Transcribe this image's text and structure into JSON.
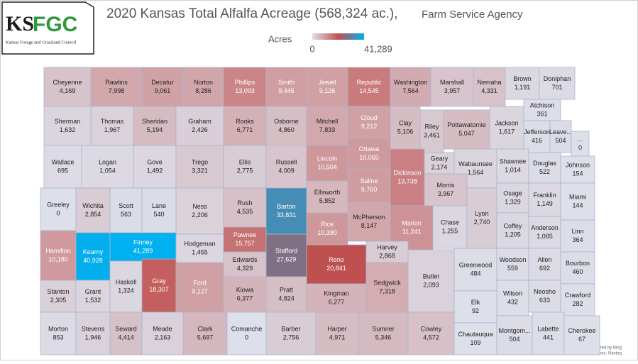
{
  "header": {
    "title": "2020 Kansas Total Alfalfa Acreage (568,324 ac.),",
    "subtitle": "Farm Service Agency",
    "logo": {
      "mark_left": "KS",
      "mark_right": "FGC",
      "caption": "Kansas Forage and Grassland Council"
    }
  },
  "map": {
    "type": "choropleth",
    "legend": {
      "title": "Acres",
      "range": [
        {
          "value": 0,
          "label": "0"
        },
        {
          "value": 41289,
          "label": "41,289"
        }
      ],
      "color_stops": [
        "#dde0ea",
        "#c0504d",
        "#00b0f0"
      ]
    },
    "counties": [
      {
        "name": "Cheyenne",
        "value": 4169,
        "label": "4,169"
      },
      {
        "name": "Rawlins",
        "value": 7998,
        "label": "7,998"
      },
      {
        "name": "Decatur",
        "value": 9061,
        "label": "9,061"
      },
      {
        "name": "Norton",
        "value": 8286,
        "label": "8,286"
      },
      {
        "name": "Phillips",
        "value": 13093,
        "label": "13,093"
      },
      {
        "name": "Smith",
        "value": 9445,
        "label": "9,445"
      },
      {
        "name": "Jewell",
        "value": 9126,
        "label": "9,126"
      },
      {
        "name": "Republic",
        "value": 14545,
        "label": "14,545"
      },
      {
        "name": "Washington",
        "value": 7564,
        "label": "7,564"
      },
      {
        "name": "Marshall",
        "value": 3957,
        "label": "3,957"
      },
      {
        "name": "Nemaha",
        "value": 4331,
        "label": "4,331"
      },
      {
        "name": "Brown",
        "value": 1191,
        "label": "1,191"
      },
      {
        "name": "Doniphan",
        "value": 701
      },
      {
        "name": "Sherman",
        "value": 1632,
        "label": "1,632"
      },
      {
        "name": "Thomas",
        "value": 1967,
        "label": "1,967"
      },
      {
        "name": "Sheridan",
        "value": 5194,
        "label": "5,194"
      },
      {
        "name": "Graham",
        "value": 2426,
        "label": "2,426"
      },
      {
        "name": "Rooks",
        "value": 6771,
        "label": "6,771"
      },
      {
        "name": "Osborne",
        "value": 4860,
        "label": "4,860"
      },
      {
        "name": "Mitchell",
        "value": 7833,
        "label": "7,833"
      },
      {
        "name": "Cloud",
        "value": 9212,
        "label": "9,212"
      },
      {
        "name": "Clay",
        "value": 5106,
        "label": "5,106"
      },
      {
        "name": "Riley",
        "value": 3461,
        "label": "3,461"
      },
      {
        "name": "Pottawatomie",
        "value": 5047,
        "label": "5,047"
      },
      {
        "name": "Jackson",
        "value": 1617,
        "label": "1,617"
      },
      {
        "name": "Atchison",
        "value": 361
      },
      {
        "name": "Jefferson",
        "value": 416
      },
      {
        "name": "Leave...",
        "value": 504
      },
      {
        "name": "...",
        "value": 0
      },
      {
        "name": "Wallace",
        "value": 695
      },
      {
        "name": "Logan",
        "value": 1054,
        "label": "1,054"
      },
      {
        "name": "Gove",
        "value": 1492,
        "label": "1,492"
      },
      {
        "name": "Trego",
        "value": 3321,
        "label": "3,321"
      },
      {
        "name": "Ellis",
        "value": 2775,
        "label": "2,775"
      },
      {
        "name": "Russell",
        "value": 4009,
        "label": "4,009"
      },
      {
        "name": "Lincoln",
        "value": 10504,
        "label": "10,504"
      },
      {
        "name": "Ottawa",
        "value": 10065,
        "label": "10,065"
      },
      {
        "name": "Dickinson",
        "value": 13738,
        "label": "13,738"
      },
      {
        "name": "Geary",
        "value": 2174,
        "label": "2,174"
      },
      {
        "name": "Wabaunsee",
        "value": 1564,
        "label": "1,564"
      },
      {
        "name": "Shawnee",
        "value": 1014,
        "label": "1,014"
      },
      {
        "name": "Douglas",
        "value": 522
      },
      {
        "name": "Johnson",
        "value": 154
      },
      {
        "name": "Saline",
        "value": 9760,
        "label": "9,760"
      },
      {
        "name": "Ellsworth",
        "value": 5852,
        "label": "5,852"
      },
      {
        "name": "Morris",
        "value": 3967,
        "label": "3,967"
      },
      {
        "name": "Osage",
        "value": 1329,
        "label": "1,329"
      },
      {
        "name": "Franklin",
        "value": 1149,
        "label": "1,149"
      },
      {
        "name": "Miami",
        "value": 144
      },
      {
        "name": "Greeley",
        "value": 0
      },
      {
        "name": "Wichita",
        "value": 2854,
        "label": "2,854"
      },
      {
        "name": "Scott",
        "value": 563
      },
      {
        "name": "Lane",
        "value": 540
      },
      {
        "name": "Ness",
        "value": 2206,
        "label": "2,206"
      },
      {
        "name": "Rush",
        "value": 4535,
        "label": "4,535"
      },
      {
        "name": "Barton",
        "value": 33831,
        "label": "33,831"
      },
      {
        "name": "McPherson",
        "value": 8147,
        "label": "8,147"
      },
      {
        "name": "Marion",
        "value": 11241,
        "label": "11,241"
      },
      {
        "name": "Chase",
        "value": 1255,
        "label": "1,255"
      },
      {
        "name": "Lyon",
        "value": 2740,
        "label": "2,740"
      },
      {
        "name": "Rice",
        "value": 10390,
        "label": "10,390"
      },
      {
        "name": "Coffey",
        "value": 1205,
        "label": "1,205"
      },
      {
        "name": "Anderson",
        "value": 1065,
        "label": "1,065"
      },
      {
        "name": "Linn",
        "value": 364
      },
      {
        "name": "Hamilton",
        "value": 10180,
        "label": "10,180"
      },
      {
        "name": "Kearny",
        "value": 40928,
        "label": "40,928"
      },
      {
        "name": "Finney",
        "value": 41289,
        "label": "41,289"
      },
      {
        "name": "Hodgeman",
        "value": 1455,
        "label": "1,455"
      },
      {
        "name": "Pawnee",
        "value": 15757,
        "label": "15,757"
      },
      {
        "name": "Stafford",
        "value": 27629,
        "label": "27,629"
      },
      {
        "name": "Reno",
        "value": 20841,
        "label": "20,841"
      },
      {
        "name": "Harvey",
        "value": 2868,
        "label": "2,868"
      },
      {
        "name": "Edwards",
        "value": 4329,
        "label": "4,329"
      },
      {
        "name": "Greenwood",
        "value": 484
      },
      {
        "name": "Butler",
        "value": 2093,
        "label": "2,093"
      },
      {
        "name": "Woodson",
        "value": 559
      },
      {
        "name": "Allen",
        "value": 692
      },
      {
        "name": "Bourbon",
        "value": 460
      },
      {
        "name": "Stanton",
        "value": 2305,
        "label": "2,305"
      },
      {
        "name": "Grant",
        "value": 1532,
        "label": "1,532"
      },
      {
        "name": "Haskell",
        "value": 1324,
        "label": "1,324"
      },
      {
        "name": "Gray",
        "value": 18307,
        "label": "18,307"
      },
      {
        "name": "Ford",
        "value": 9127,
        "label": "9,127"
      },
      {
        "name": "Kiowa",
        "value": 6377,
        "label": "6,377"
      },
      {
        "name": "Pratt",
        "value": 4824,
        "label": "4,824"
      },
      {
        "name": "Kingman",
        "value": 6277,
        "label": "6,277"
      },
      {
        "name": "Sedgwick",
        "value": 7318,
        "label": "7,318"
      },
      {
        "name": "Wilson",
        "value": 432
      },
      {
        "name": "Neosho",
        "value": 633
      },
      {
        "name": "Crawford",
        "value": 282
      },
      {
        "name": "Elk",
        "value": 92
      },
      {
        "name": "Morton",
        "value": 853
      },
      {
        "name": "Stevens",
        "value": 1946,
        "label": "1,946"
      },
      {
        "name": "Seward",
        "value": 4414,
        "label": "4,414"
      },
      {
        "name": "Meade",
        "value": 2163,
        "label": "2,163"
      },
      {
        "name": "Clark",
        "value": 5697,
        "label": "5,697"
      },
      {
        "name": "Comanche",
        "value": 0
      },
      {
        "name": "Barber",
        "value": 2756,
        "label": "2,756"
      },
      {
        "name": "Harper",
        "value": 4971,
        "label": "4,971"
      },
      {
        "name": "Sumner",
        "value": 5346,
        "label": "5,346"
      },
      {
        "name": "Cowley",
        "value": 4572,
        "label": "4,572"
      },
      {
        "name": "Chautauqua",
        "value": 109
      },
      {
        "name": "Montgom...",
        "value": 504
      },
      {
        "name": "Labette",
        "value": 441
      },
      {
        "name": "Cherokee",
        "value": 67
      }
    ]
  },
  "footer": {
    "credit": "Powered by Bing",
    "copyright": "© GeoNames, Navteq"
  }
}
